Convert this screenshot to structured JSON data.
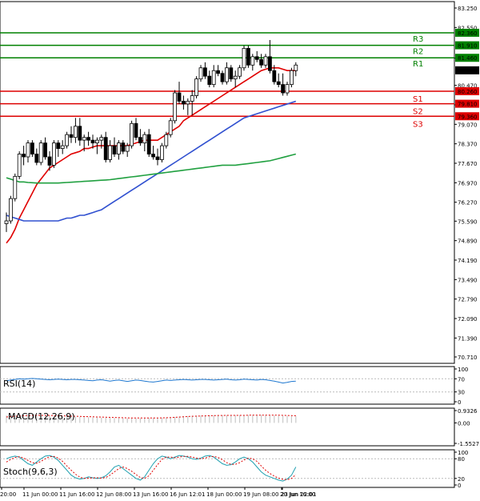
{
  "chart_data": {
    "type": "candlestick",
    "price_axis": {
      "ticks": [
        "83.250",
        "82.550",
        "81.450",
        "80.470",
        "79.770",
        "79.070",
        "78.370",
        "77.670",
        "76.970",
        "76.270",
        "75.590",
        "74.890",
        "74.190",
        "73.490",
        "72.790",
        "72.090",
        "71.390",
        "70.710"
      ],
      "tick_values": [
        83.25,
        82.55,
        81.45,
        80.47,
        79.77,
        79.07,
        78.37,
        77.67,
        76.97,
        76.27,
        75.59,
        74.89,
        74.19,
        73.49,
        72.79,
        72.09,
        71.39,
        70.71
      ],
      "range": [
        70.71,
        83.25
      ]
    },
    "time_axis": {
      "labels": [
        "20:00",
        "11 Jun 00:00",
        "11 Jun 16:00",
        "12 Jun 08:00",
        "13 Jun 16:00",
        "16 Jun 12:01",
        "18 Jun 00:00",
        "19 Jun 08:00",
        "20 Jun 16:00",
        "23 Jun 22:01"
      ]
    },
    "levels": [
      {
        "label": "R3",
        "value": 82.36,
        "value_text": "82.360",
        "color": "#008000"
      },
      {
        "label": "R2",
        "value": 81.91,
        "value_text": "81.910",
        "color": "#008000"
      },
      {
        "label": "R1",
        "value": 81.46,
        "value_text": "81.460",
        "color": "#008000"
      },
      {
        "label": "S1",
        "value": 80.26,
        "value_text": "80.260",
        "color": "#dd0000"
      },
      {
        "label": "S2",
        "value": 79.81,
        "value_text": "79.810",
        "color": "#dd0000"
      },
      {
        "label": "S3",
        "value": 79.36,
        "value_text": "79.360",
        "color": "#dd0000"
      }
    ],
    "current_price": {
      "value": 81.01,
      "value_text": "81.010"
    },
    "candles": [
      [
        75.5,
        75.9,
        75.2,
        75.6
      ],
      [
        75.6,
        76.5,
        75.5,
        76.4
      ],
      [
        76.4,
        77.3,
        76.3,
        77.2
      ],
      [
        77.2,
        78.1,
        77.1,
        78.0
      ],
      [
        78.0,
        78.3,
        77.6,
        77.9
      ],
      [
        77.9,
        78.5,
        77.7,
        78.4
      ],
      [
        78.4,
        78.5,
        77.9,
        78.0
      ],
      [
        78.0,
        78.2,
        77.6,
        77.7
      ],
      [
        77.7,
        78.5,
        77.6,
        78.4
      ],
      [
        78.4,
        78.6,
        77.8,
        77.9
      ],
      [
        77.9,
        78.1,
        77.4,
        77.6
      ],
      [
        77.6,
        78.5,
        77.5,
        78.4
      ],
      [
        78.4,
        78.5,
        77.9,
        78.2
      ],
      [
        78.2,
        78.5,
        78.0,
        78.3
      ],
      [
        78.3,
        78.8,
        78.2,
        78.7
      ],
      [
        78.7,
        79.0,
        78.4,
        78.6
      ],
      [
        78.6,
        79.3,
        78.4,
        79.0
      ],
      [
        79.0,
        79.3,
        78.3,
        78.5
      ],
      [
        78.5,
        78.7,
        78.1,
        78.6
      ],
      [
        78.6,
        78.8,
        78.3,
        78.5
      ],
      [
        78.5,
        78.7,
        78.2,
        78.4
      ],
      [
        78.4,
        78.6,
        78.0,
        78.5
      ],
      [
        78.5,
        78.7,
        78.2,
        78.6
      ],
      [
        78.6,
        78.8,
        77.7,
        77.8
      ],
      [
        77.8,
        78.5,
        77.7,
        78.3
      ],
      [
        78.3,
        78.6,
        77.9,
        78.0
      ],
      [
        78.0,
        78.5,
        77.8,
        78.4
      ],
      [
        78.4,
        78.5,
        78.0,
        78.1
      ],
      [
        78.1,
        78.4,
        77.9,
        78.3
      ],
      [
        78.3,
        79.2,
        78.2,
        79.1
      ],
      [
        79.1,
        79.3,
        78.5,
        78.6
      ],
      [
        78.6,
        78.9,
        78.3,
        78.4
      ],
      [
        78.4,
        78.8,
        78.1,
        78.7
      ],
      [
        78.7,
        78.9,
        77.9,
        78.0
      ],
      [
        78.0,
        78.3,
        77.8,
        77.9
      ],
      [
        77.9,
        78.2,
        77.6,
        77.8
      ],
      [
        77.8,
        78.4,
        77.7,
        78.3
      ],
      [
        78.3,
        78.8,
        78.2,
        78.7
      ],
      [
        78.7,
        79.3,
        78.6,
        79.2
      ],
      [
        79.2,
        80.3,
        79.1,
        80.2
      ],
      [
        80.2,
        80.6,
        79.8,
        79.9
      ],
      [
        79.9,
        80.1,
        79.6,
        79.8
      ],
      [
        79.8,
        80.0,
        79.4,
        79.9
      ],
      [
        79.9,
        80.3,
        79.4,
        80.1
      ],
      [
        80.1,
        80.8,
        80.0,
        80.7
      ],
      [
        80.7,
        81.2,
        80.6,
        81.1
      ],
      [
        81.1,
        81.3,
        80.7,
        80.8
      ],
      [
        80.8,
        81.0,
        80.4,
        80.5
      ],
      [
        80.5,
        81.2,
        80.4,
        81.0
      ],
      [
        81.0,
        81.2,
        80.8,
        80.9
      ],
      [
        80.9,
        81.0,
        80.5,
        80.6
      ],
      [
        80.6,
        81.3,
        80.5,
        81.1
      ],
      [
        81.1,
        81.2,
        80.6,
        80.7
      ],
      [
        80.7,
        81.0,
        80.4,
        80.8
      ],
      [
        80.8,
        81.2,
        80.7,
        81.1
      ],
      [
        81.1,
        81.9,
        81.0,
        81.8
      ],
      [
        81.8,
        81.9,
        81.1,
        81.2
      ],
      [
        81.2,
        81.6,
        81.0,
        81.5
      ],
      [
        81.5,
        81.7,
        81.3,
        81.4
      ],
      [
        81.4,
        81.6,
        81.1,
        81.2
      ],
      [
        81.2,
        81.6,
        81.1,
        81.5
      ],
      [
        81.5,
        82.1,
        80.9,
        81.0
      ],
      [
        81.0,
        81.2,
        80.5,
        80.6
      ],
      [
        80.6,
        80.9,
        80.4,
        80.5
      ],
      [
        80.5,
        80.9,
        80.1,
        80.2
      ],
      [
        80.2,
        80.6,
        80.1,
        80.5
      ],
      [
        80.5,
        81.1,
        80.4,
        81.0
      ],
      [
        81.0,
        81.3,
        80.8,
        81.2
      ]
    ],
    "series": [
      {
        "kind": "ma",
        "color": "#e00000",
        "values": [
          74.8,
          75.0,
          75.3,
          75.7,
          76.0,
          76.3,
          76.6,
          76.9,
          77.1,
          77.3,
          77.5,
          77.6,
          77.7,
          77.8,
          77.9,
          78.0,
          78.05,
          78.1,
          78.2,
          78.2,
          78.25,
          78.3,
          78.3,
          78.3,
          78.3,
          78.3,
          78.3,
          78.3,
          78.3,
          78.35,
          78.4,
          78.45,
          78.5,
          78.5,
          78.5,
          78.5,
          78.6,
          78.7,
          78.8,
          78.9,
          79.0,
          79.2,
          79.3,
          79.4,
          79.5,
          79.6,
          79.7,
          79.8,
          79.9,
          80.0,
          80.1,
          80.2,
          80.3,
          80.4,
          80.5,
          80.6,
          80.7,
          80.8,
          80.9,
          81.0,
          81.05,
          81.1,
          81.1,
          81.1,
          81.05,
          81.0,
          81.0,
          81.0
        ]
      },
      {
        "kind": "ma",
        "color": "#3050d0",
        "values": [
          75.8,
          75.75,
          75.7,
          75.65,
          75.6,
          75.6,
          75.6,
          75.6,
          75.6,
          75.6,
          75.6,
          75.6,
          75.6,
          75.65,
          75.7,
          75.7,
          75.75,
          75.8,
          75.8,
          75.85,
          75.9,
          75.95,
          76.0,
          76.1,
          76.2,
          76.3,
          76.4,
          76.5,
          76.6,
          76.7,
          76.8,
          76.9,
          77.0,
          77.1,
          77.2,
          77.3,
          77.4,
          77.5,
          77.6,
          77.7,
          77.8,
          77.9,
          78.0,
          78.1,
          78.2,
          78.3,
          78.4,
          78.5,
          78.6,
          78.7,
          78.8,
          78.9,
          79.0,
          79.1,
          79.2,
          79.3,
          79.35,
          79.4,
          79.45,
          79.5,
          79.55,
          79.6,
          79.65,
          79.7,
          79.75,
          79.8,
          79.85,
          79.9
        ]
      },
      {
        "kind": "ma",
        "color": "#20a040",
        "values": [
          77.15,
          77.1,
          77.05,
          77.0,
          77.0,
          76.98,
          76.97,
          76.96,
          76.96,
          76.96,
          76.96,
          76.96,
          76.96,
          76.97,
          76.98,
          76.99,
          77.0,
          77.01,
          77.02,
          77.03,
          77.04,
          77.05,
          77.06,
          77.07,
          77.08,
          77.1,
          77.12,
          77.14,
          77.16,
          77.18,
          77.2,
          77.22,
          77.24,
          77.26,
          77.28,
          77.3,
          77.32,
          77.34,
          77.36,
          77.38,
          77.4,
          77.42,
          77.44,
          77.46,
          77.48,
          77.5,
          77.52,
          77.54,
          77.56,
          77.58,
          77.6,
          77.6,
          77.6,
          77.6,
          77.62,
          77.64,
          77.66,
          77.68,
          77.7,
          77.72,
          77.74,
          77.76,
          77.8,
          77.84,
          77.88,
          77.92,
          77.96,
          78.0
        ]
      }
    ]
  },
  "indicators": {
    "rsi": {
      "label": "RSI(14)",
      "ticks": [
        "100",
        "70",
        "30",
        "0"
      ],
      "tick_values": [
        100,
        70,
        30,
        0
      ],
      "values": [
        64,
        66,
        68,
        70,
        69,
        70,
        71,
        70,
        69,
        68,
        67,
        68,
        69,
        68,
        67,
        68,
        68,
        67,
        66,
        65,
        64,
        66,
        67,
        65,
        63,
        65,
        66,
        64,
        62,
        64,
        66,
        65,
        63,
        61,
        60,
        62,
        64,
        66,
        65,
        66,
        67,
        68,
        67,
        66,
        67,
        68,
        68,
        67,
        66,
        67,
        68,
        69,
        67,
        66,
        67,
        69,
        68,
        67,
        66,
        68,
        67,
        65,
        63,
        60,
        57,
        59,
        62,
        63
      ]
    },
    "macd": {
      "label": "MACD(12,26,9)",
      "ticks": [
        "0.9326",
        "0.00",
        "-1.5527"
      ],
      "tick_values": [
        0.9326,
        0,
        -1.5527
      ],
      "hist": [
        0.55,
        0.58,
        0.6,
        0.62,
        0.62,
        0.62,
        0.62,
        0.6,
        0.58,
        0.56,
        0.54,
        0.52,
        0.5,
        0.48,
        0.46,
        0.46,
        0.45,
        0.45,
        0.44,
        0.43,
        0.42,
        0.41,
        0.4,
        0.39,
        0.38,
        0.37,
        0.36,
        0.35,
        0.34,
        0.34,
        0.34,
        0.35,
        0.36,
        0.38,
        0.38,
        0.38,
        0.39,
        0.4,
        0.42,
        0.45,
        0.48,
        0.5,
        0.52,
        0.53,
        0.55,
        0.56,
        0.57,
        0.58,
        0.58,
        0.58,
        0.58,
        0.58,
        0.58,
        0.58,
        0.58,
        0.58,
        0.59,
        0.6,
        0.6,
        0.6,
        0.6,
        0.58,
        0.56,
        0.55,
        0.53,
        0.52,
        0.5,
        0.5
      ],
      "signal": [
        0.45,
        0.48,
        0.5,
        0.52,
        0.54,
        0.55,
        0.56,
        0.57,
        0.57,
        0.57,
        0.56,
        0.55,
        0.54,
        0.53,
        0.52,
        0.51,
        0.5,
        0.49,
        0.48,
        0.47,
        0.46,
        0.45,
        0.44,
        0.43,
        0.42,
        0.41,
        0.4,
        0.39,
        0.38,
        0.37,
        0.37,
        0.37,
        0.37,
        0.37,
        0.37,
        0.37,
        0.38,
        0.39,
        0.4,
        0.42,
        0.44,
        0.46,
        0.48,
        0.5,
        0.51,
        0.52,
        0.53,
        0.54,
        0.55,
        0.56,
        0.56,
        0.57,
        0.57,
        0.57,
        0.57,
        0.57,
        0.58,
        0.58,
        0.59,
        0.59,
        0.59,
        0.59,
        0.58,
        0.58,
        0.57,
        0.56,
        0.55,
        0.54
      ]
    },
    "stoch": {
      "label": "Stoch(9,6,3)",
      "ticks": [
        "100",
        "80",
        "20",
        "0"
      ],
      "tick_values": [
        100,
        80,
        20,
        0
      ],
      "main": [
        80,
        85,
        88,
        85,
        75,
        65,
        60,
        70,
        80,
        88,
        90,
        85,
        75,
        60,
        45,
        30,
        22,
        18,
        20,
        25,
        22,
        20,
        22,
        28,
        40,
        55,
        60,
        50,
        40,
        30,
        20,
        15,
        25,
        45,
        65,
        80,
        88,
        85,
        80,
        85,
        90,
        88,
        85,
        80,
        78,
        82,
        88,
        90,
        85,
        75,
        65,
        60,
        62,
        70,
        80,
        85,
        80,
        70,
        55,
        40,
        30,
        25,
        20,
        15,
        12,
        18,
        30,
        55
      ],
      "signal": [
        70,
        78,
        84,
        86,
        82,
        75,
        68,
        66,
        72,
        80,
        86,
        87,
        82,
        72,
        58,
        45,
        33,
        24,
        20,
        21,
        22,
        22,
        21,
        23,
        30,
        40,
        50,
        55,
        50,
        42,
        32,
        23,
        20,
        28,
        45,
        62,
        78,
        85,
        85,
        83,
        85,
        87,
        87,
        85,
        82,
        80,
        82,
        86,
        87,
        84,
        77,
        68,
        63,
        63,
        68,
        76,
        82,
        80,
        72,
        58,
        45,
        35,
        27,
        21,
        17,
        16,
        20,
        32
      ]
    }
  }
}
